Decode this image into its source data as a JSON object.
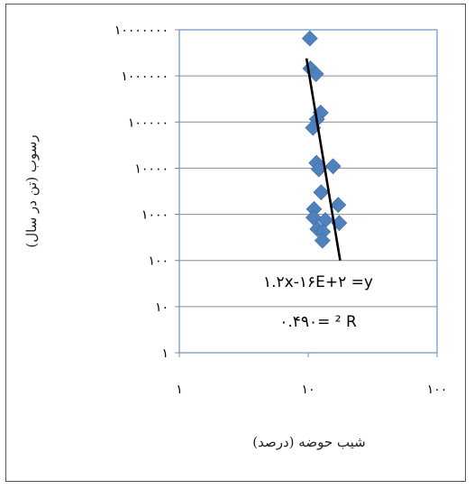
{
  "chart_data": {
    "type": "scatter",
    "xlabel": "شیب حوضه (درصد)",
    "ylabel": "رسوب (تن در سال)",
    "x_scale": "log",
    "y_scale": "log",
    "xlim": [
      1,
      100
    ],
    "ylim": [
      1,
      10000000
    ],
    "x_tick_labels": [
      "۱",
      "۱۰",
      "۱۰۰"
    ],
    "y_tick_labels": [
      "۱۰۰۰۰۰۰۰",
      "۱۰۰۰۰۰۰",
      "۱۰۰۰۰۰",
      "۱۰۰۰۰",
      "۱۰۰۰",
      "۱۰۰",
      "۱۰",
      "۱"
    ],
    "grid": "horizontal",
    "marker_color": "#4f81bd",
    "trendline_color": "#000000",
    "points": [
      {
        "x": 10.3,
        "y": 6500000
      },
      {
        "x": 10.4,
        "y": 1450000
      },
      {
        "x": 11.5,
        "y": 1100000
      },
      {
        "x": 12.5,
        "y": 160000
      },
      {
        "x": 11.7,
        "y": 115000
      },
      {
        "x": 10.9,
        "y": 75000
      },
      {
        "x": 11.6,
        "y": 13000
      },
      {
        "x": 12.1,
        "y": 9500
      },
      {
        "x": 15.6,
        "y": 11000
      },
      {
        "x": 12.6,
        "y": 3000
      },
      {
        "x": 11.1,
        "y": 1300
      },
      {
        "x": 11.0,
        "y": 850
      },
      {
        "x": 13.6,
        "y": 750
      },
      {
        "x": 17.1,
        "y": 1600
      },
      {
        "x": 17.4,
        "y": 650
      },
      {
        "x": 11.8,
        "y": 480
      },
      {
        "x": 13.0,
        "y": 420
      },
      {
        "x": 12.9,
        "y": 270
      }
    ],
    "trendline": {
      "x": [
        9.7,
        17.7
      ],
      "y": [
        2400000,
        100
      ]
    },
    "equation": "۱.۲x-۱۶E+۲ =y",
    "r_squared": "۰.۴۹۰= ² R"
  }
}
